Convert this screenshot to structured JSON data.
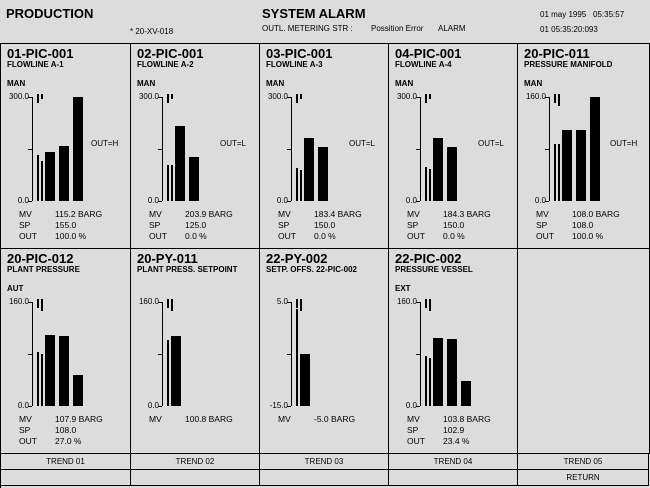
{
  "header": {
    "left_title": "PRODUCTION",
    "center_title": "SYSTEM ALARM",
    "date": "01 may 1995",
    "time": "05:35:57",
    "valve": "* 20-XV-018",
    "alarm_source": "OUTL. METERING STR :",
    "alarm_type": "Possition Error",
    "alarm_label": "ALARM",
    "alarm_time": "01 05:35:20:093"
  },
  "panels": [
    {
      "tag": "01-PIC-001",
      "sub": "FLOWLINE A-1",
      "mode": "MAN",
      "ymax": "300.0",
      "ymin": "0.0",
      "out_label": "OUT=H",
      "mv_label": "MV",
      "mv": "115.2 BARG",
      "sp_label": "SP",
      "sp": "155.0",
      "out_key": "OUT",
      "out": "100.0 %",
      "bars": [
        {
          "v": 0.44,
          "w": 2
        },
        {
          "v": 0.38,
          "w": 2
        },
        {
          "v": 0.47,
          "w": 10
        },
        {
          "v": 0.53,
          "w": 10
        },
        {
          "v": 1.0,
          "w": 10
        }
      ]
    },
    {
      "tag": "02-PIC-001",
      "sub": "FLOWLINE A-2",
      "mode": "MAN",
      "ymax": "300.0",
      "ymin": "0.0",
      "out_label": "OUT=L",
      "mv_label": "MV",
      "mv": "203.9 BARG",
      "sp_label": "SP",
      "sp": "125.0",
      "out_key": "OUT",
      "out": "0.0 %",
      "bars": [
        {
          "v": 0.35,
          "w": 2
        },
        {
          "v": 0.35,
          "w": 2
        },
        {
          "v": 0.72,
          "w": 10
        },
        {
          "v": 0.42,
          "w": 10
        }
      ]
    },
    {
      "tag": "03-PIC-001",
      "sub": "FLOWLINE A-3",
      "mode": "MAN",
      "ymax": "300.0",
      "ymin": "0.0",
      "out_label": "OUT=L",
      "mv_label": "MV",
      "mv": "183.4 BARG",
      "sp_label": "SP",
      "sp": "150.0",
      "out_key": "OUT",
      "out": "0.0 %",
      "bars": [
        {
          "v": 0.32,
          "w": 2
        },
        {
          "v": 0.3,
          "w": 2
        },
        {
          "v": 0.61,
          "w": 10
        },
        {
          "v": 0.52,
          "w": 10
        }
      ]
    },
    {
      "tag": "04-PIC-001",
      "sub": "FLOWLINE A-4",
      "mode": "MAN",
      "ymax": "300.0",
      "ymin": "0.0",
      "out_label": "OUT=L",
      "mv_label": "MV",
      "mv": "184.3 BARG",
      "sp_label": "SP",
      "sp": "150.0",
      "out_key": "OUT",
      "out": "0.0 %",
      "bars": [
        {
          "v": 0.33,
          "w": 2
        },
        {
          "v": 0.31,
          "w": 2
        },
        {
          "v": 0.61,
          "w": 10
        },
        {
          "v": 0.52,
          "w": 10
        }
      ]
    },
    {
      "tag": "20-PIC-011",
      "sub": "PRESSURE MANIFOLD",
      "mode": "MAN",
      "ymax": "160.0",
      "ymin": "0.0",
      "out_label": "OUT=H",
      "mv_label": "MV",
      "mv": "108.0 BARG",
      "sp_label": "SP",
      "sp": "108.0",
      "out_key": "OUT",
      "out": "100.0 %",
      "bars": [
        {
          "v": 0.55,
          "w": 2
        },
        {
          "v": 0.55,
          "w": 2
        },
        {
          "v": 0.68,
          "w": 10
        },
        {
          "v": 0.68,
          "w": 10
        },
        {
          "v": 1.0,
          "w": 10
        }
      ]
    },
    {
      "tag": "20-PIC-012",
      "sub": "PLANT PRESSURE",
      "mode": "AUT",
      "ymax": "160.0",
      "ymin": "0.0",
      "out_label": "",
      "mv_label": "MV",
      "mv": "107.9 BARG",
      "sp_label": "SP",
      "sp": "108.0",
      "out_key": "OUT",
      "out": "27.0 %",
      "bars": [
        {
          "v": 0.52,
          "w": 2
        },
        {
          "v": 0.5,
          "w": 2
        },
        {
          "v": 0.68,
          "w": 10
        },
        {
          "v": 0.67,
          "w": 10
        },
        {
          "v": 0.3,
          "w": 10
        }
      ]
    },
    {
      "tag": "20-PY-011",
      "sub": "PLANT PRESS. SETPOINT",
      "mode": "",
      "ymax": "160.0",
      "ymin": "0.0",
      "out_label": "",
      "mv_label": "MV",
      "mv": "100.8 BARG",
      "sp_label": "",
      "sp": "",
      "out_key": "",
      "out": "",
      "bars": [
        {
          "v": 0.63,
          "w": 2
        },
        {
          "v": 0.67,
          "w": 10
        }
      ]
    },
    {
      "tag": "22-PY-002",
      "sub": "SETP. OFFS. 22-PIC-002",
      "mode": "",
      "ymax": "5.0",
      "ymin": "-15.0",
      "out_label": "",
      "mv_label": "MV",
      "mv": "-5.0 BARG",
      "sp_label": "",
      "sp": "",
      "out_key": "",
      "out": "",
      "bars": [
        {
          "v": 0.93,
          "w": 2
        },
        {
          "v": 0.5,
          "w": 10
        }
      ]
    },
    {
      "tag": "22-PIC-002",
      "sub": "PRESSURE VESSEL",
      "mode": "EXT",
      "ymax": "160.0",
      "ymin": "0.0",
      "out_label": "",
      "mv_label": "MV",
      "mv": "103.8 BARG",
      "sp_label": "SP",
      "sp": "102.9",
      "out_key": "OUT",
      "out": "23.4 %",
      "bars": [
        {
          "v": 0.48,
          "w": 2
        },
        {
          "v": 0.46,
          "w": 2
        },
        {
          "v": 0.65,
          "w": 10
        },
        {
          "v": 0.64,
          "w": 10
        },
        {
          "v": 0.24,
          "w": 10
        }
      ]
    }
  ],
  "footer": {
    "trend1": "TREND 01",
    "trend2": "TREND 02",
    "trend3": "TREND 03",
    "trend4": "TREND 04",
    "trend5": "TREND 05",
    "return": "RETURN"
  }
}
